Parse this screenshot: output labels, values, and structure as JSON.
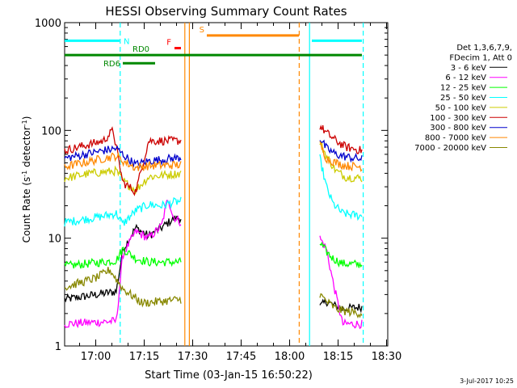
{
  "chart_data": {
    "type": "line",
    "title": "HESSI Observing Summary Count Rates",
    "xlabel": "Start Time (03-Jan-15 16:50:22)",
    "ylabel_main": "Count Rate (s",
    "ylabel_sup1": "-1",
    "ylabel_mid": " detector",
    "ylabel_sup2": "-1",
    "ylabel_end": ")",
    "x_unit": "minutes after 16:50:22",
    "xlim": [
      0,
      100
    ],
    "ylim": [
      1,
      1000
    ],
    "y_scale": "log",
    "x_ticks": [
      {
        "t": 9.63,
        "label": "17:00"
      },
      {
        "t": 24.63,
        "label": "17:15"
      },
      {
        "t": 39.63,
        "label": "17:30"
      },
      {
        "t": 54.63,
        "label": "17:45"
      },
      {
        "t": 69.63,
        "label": "18:00"
      },
      {
        "t": 84.63,
        "label": "18:15"
      },
      {
        "t": 99.63,
        "label": "18:30"
      }
    ],
    "y_ticks": [
      {
        "v": 1,
        "label": "1"
      },
      {
        "v": 10,
        "label": "10"
      },
      {
        "v": 100,
        "label": "100"
      },
      {
        "v": 1000,
        "label": "1000"
      }
    ],
    "legend_header": [
      "Det 1,3,6,7,9,",
      "FDecim 1, Att 0"
    ],
    "legend_placement": "right",
    "series": [
      {
        "name": "3 - 6 keV",
        "color": "#000000",
        "segments": [
          {
            "x": [
              0,
              16,
              18,
              22,
              26,
              30,
              33.5,
              36
            ],
            "y": [
              2.7,
              3.2,
              7.8,
              12.5,
              10.5,
              12.5,
              15,
              15.5
            ]
          },
          {
            "x": [
              79,
              81,
              83,
              86,
              92
            ],
            "y": [
              2.3,
              2.6,
              2.4,
              2.2,
              2.3
            ]
          }
        ]
      },
      {
        "name": "6 - 12 keV",
        "color": "#ff00ff",
        "segments": [
          {
            "x": [
              0,
              16,
              18,
              22,
              26,
              30,
              32,
              33.5,
              36
            ],
            "y": [
              1.6,
              1.7,
              7,
              11.5,
              10,
              13,
              24,
              16,
              14
            ]
          },
          {
            "x": [
              79,
              81,
              83,
              86,
              92
            ],
            "y": [
              10,
              8,
              4,
              1.6,
              1.6
            ]
          }
        ]
      },
      {
        "name": "12 - 25 keV",
        "color": "#00ff00",
        "segments": [
          {
            "x": [
              0,
              16,
              18,
              22,
              26,
              36
            ],
            "y": [
              5.5,
              6.2,
              8,
              6.5,
              6,
              6
            ]
          },
          {
            "x": [
              79,
              81,
              83,
              86,
              92
            ],
            "y": [
              9,
              7.5,
              6.5,
              5.8,
              5.7
            ]
          }
        ]
      },
      {
        "name": "25 - 50 keV",
        "color": "#00ffff",
        "segments": [
          {
            "x": [
              0,
              12,
              16,
              18,
              22,
              26,
              30,
              33.5,
              36
            ],
            "y": [
              14,
              16,
              17,
              13.5,
              18,
              20.5,
              20,
              21.5,
              22
            ]
          },
          {
            "x": [
              79,
              81,
              83,
              86,
              92
            ],
            "y": [
              55,
              30,
              21,
              17,
              16
            ]
          }
        ]
      },
      {
        "name": "50 - 100 keV",
        "color": "#cccc00",
        "segments": [
          {
            "x": [
              0,
              8,
              16,
              18,
              22,
              26,
              36
            ],
            "y": [
              36,
              40,
              42,
              34,
              28,
              37,
              40
            ]
          },
          {
            "x": [
              79,
              81,
              84,
              87,
              92
            ],
            "y": [
              78,
              58,
              42,
              37,
              36
            ]
          }
        ]
      },
      {
        "name": "100 - 300 keV",
        "color": "#cc0000",
        "segments": [
          {
            "x": [
              0,
              12,
              15,
              18,
              22,
              26,
              36
            ],
            "y": [
              65,
              80,
              100,
              33,
              27,
              80,
              80
            ]
          },
          {
            "x": [
              79,
              81,
              84,
              87,
              92
            ],
            "y": [
              110,
              95,
              80,
              70,
              65
            ]
          }
        ]
      },
      {
        "name": "300 - 800 keV",
        "color": "#0000cc",
        "segments": [
          {
            "x": [
              0,
              12,
              16,
              18,
              22,
              26,
              36
            ],
            "y": [
              55,
              65,
              68,
              60,
              48,
              52,
              56
            ]
          },
          {
            "x": [
              79,
              81,
              84,
              87,
              92
            ],
            "y": [
              85,
              68,
              60,
              57,
              54
            ]
          }
        ]
      },
      {
        "name": "800 - 7000 keV",
        "color": "#ff8800",
        "segments": [
          {
            "x": [
              0,
              12,
              16,
              18,
              22,
              26,
              36
            ],
            "y": [
              46,
              55,
              58,
              52,
              45,
              47,
              48
            ]
          },
          {
            "x": [
              79,
              81,
              84,
              87,
              92
            ],
            "y": [
              75,
              55,
              50,
              47,
              46
            ]
          }
        ]
      },
      {
        "name": "7000 - 20000 keV",
        "color": "#888800",
        "segments": [
          {
            "x": [
              0,
              10,
              14,
              18,
              24,
              30,
              36
            ],
            "y": [
              3.5,
              4.3,
              5.1,
              3.4,
              2.5,
              2.6,
              2.7
            ]
          },
          {
            "x": [
              79,
              81,
              84,
              87,
              92
            ],
            "y": [
              3,
              2.6,
              2.2,
              2.1,
              2.0
            ]
          }
        ]
      }
    ],
    "state_bars": [
      {
        "label": "N",
        "color": "#00ffff",
        "segments": [
          [
            0,
            17
          ],
          [
            76.5,
            92
          ]
        ],
        "value": 680
      },
      {
        "label": "RD0",
        "color": "#008800",
        "segments": [
          [
            0,
            92
          ]
        ],
        "value": 500
      },
      {
        "label": "RD6",
        "color": "#008800",
        "segments": [
          [
            18,
            28
          ]
        ],
        "value": 420
      },
      {
        "label": "F",
        "color": "#ff0000",
        "segments": [
          [
            34,
            36
          ]
        ],
        "value": 580
      },
      {
        "label": "S",
        "color": "#ff8800",
        "segments": [
          [
            44,
            72.5
          ]
        ],
        "value": 760
      }
    ],
    "vlines": [
      {
        "t": 17.2,
        "color": "#00ffff",
        "dashed": true
      },
      {
        "t": 37.2,
        "color": "#ff8800",
        "dashed": false
      },
      {
        "t": 38.6,
        "color": "#ff8800",
        "dashed": false
      },
      {
        "t": 72.6,
        "color": "#ff8800",
        "dashed": true
      },
      {
        "t": 75.8,
        "color": "#00ffff",
        "dashed": false
      },
      {
        "t": 92.4,
        "color": "#00ffff",
        "dashed": true
      }
    ],
    "footer": "3-Jul-2017 10:25"
  }
}
